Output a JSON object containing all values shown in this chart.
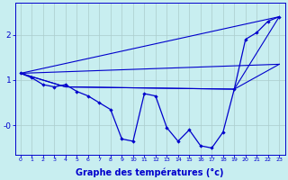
{
  "xlabel": "Graphe des températures (°c)",
  "xlabel_fontsize": 7,
  "bg_color": "#c8eef0",
  "line_color": "#0000cc",
  "grid_color": "#aacccc",
  "xlim": [
    -0.5,
    23.5
  ],
  "ylim": [
    -0.65,
    2.7
  ],
  "yticks": [
    0.0,
    1.0,
    2.0
  ],
  "ytick_labels": [
    "-0",
    "1",
    "2"
  ],
  "xticks": [
    0,
    1,
    2,
    3,
    4,
    5,
    6,
    7,
    8,
    9,
    10,
    11,
    12,
    13,
    14,
    15,
    16,
    17,
    18,
    19,
    20,
    21,
    22,
    23
  ],
  "line1_x": [
    0,
    1,
    2,
    3,
    4,
    5,
    6,
    7,
    8,
    9,
    10,
    11,
    12,
    13,
    14,
    15,
    16,
    17,
    18,
    19,
    20,
    21,
    22,
    23
  ],
  "line1_y": [
    1.15,
    1.05,
    0.9,
    0.85,
    0.9,
    0.75,
    0.65,
    0.5,
    0.35,
    -0.3,
    -0.35,
    0.7,
    0.65,
    -0.05,
    -0.35,
    -0.1,
    -0.45,
    -0.5,
    -0.15,
    0.8,
    1.9,
    2.05,
    2.3,
    2.4
  ],
  "line2_x": [
    0,
    23
  ],
  "line2_y": [
    1.15,
    2.4
  ],
  "line3_x": [
    0,
    23
  ],
  "line3_y": [
    1.15,
    1.35
  ],
  "line4_x": [
    0,
    4,
    19,
    23
  ],
  "line4_y": [
    1.15,
    0.85,
    0.8,
    2.4
  ],
  "line5_x": [
    0,
    4,
    19,
    23
  ],
  "line5_y": [
    1.15,
    0.85,
    0.8,
    1.35
  ]
}
